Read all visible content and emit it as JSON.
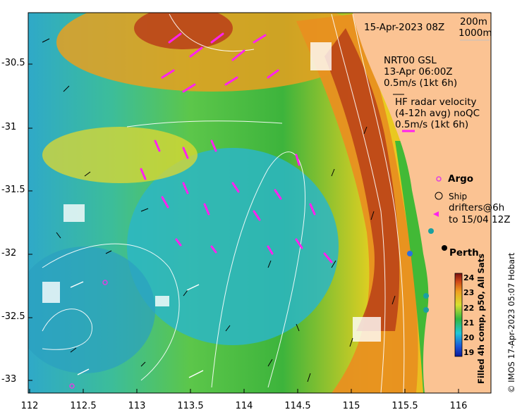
{
  "map": {
    "timestamp": "15-Apr-2023 08Z",
    "contours": [
      "200m",
      "1000m"
    ],
    "model_label": "NRT00 GSL",
    "model_time": "13-Apr 06:00Z",
    "model_scale": "0.5m/s (1kt 6h)",
    "radar_title": "HF radar velocity",
    "radar_avg": "(4-12h avg) noQC",
    "radar_scale": "0.5m/s (1kt 6h)",
    "argo_label": "Argo",
    "ship_label": "Ship",
    "drifters_label": "drifters@6h",
    "drifters_until": "to 15/04 12Z",
    "city_label": "Perth",
    "colorbar_label": "Filled 4h comp, p50, All Sats",
    "credit": "© IMOS 17-Apr-2023 05:07 Hobart",
    "colors": {
      "land": "#fbc393",
      "radar_arrow": "#ff22ee",
      "argo": "#e040e0",
      "contour": "#ffffff"
    }
  },
  "axes": {
    "x_ticks": [
      "112",
      "112.5",
      "113",
      "113.5",
      "114",
      "114.5",
      "115",
      "115.5",
      "116"
    ],
    "y_ticks": [
      "-30.5",
      "-31",
      "-31.5",
      "-32",
      "-32.5",
      "-33"
    ],
    "x_range": [
      112,
      116.3
    ],
    "y_range": [
      -33.1,
      -30.05
    ]
  },
  "colorbar": {
    "ticks": [
      "24",
      "23",
      "22",
      "21",
      "20",
      "19"
    ],
    "range": [
      19,
      24.5
    ]
  }
}
